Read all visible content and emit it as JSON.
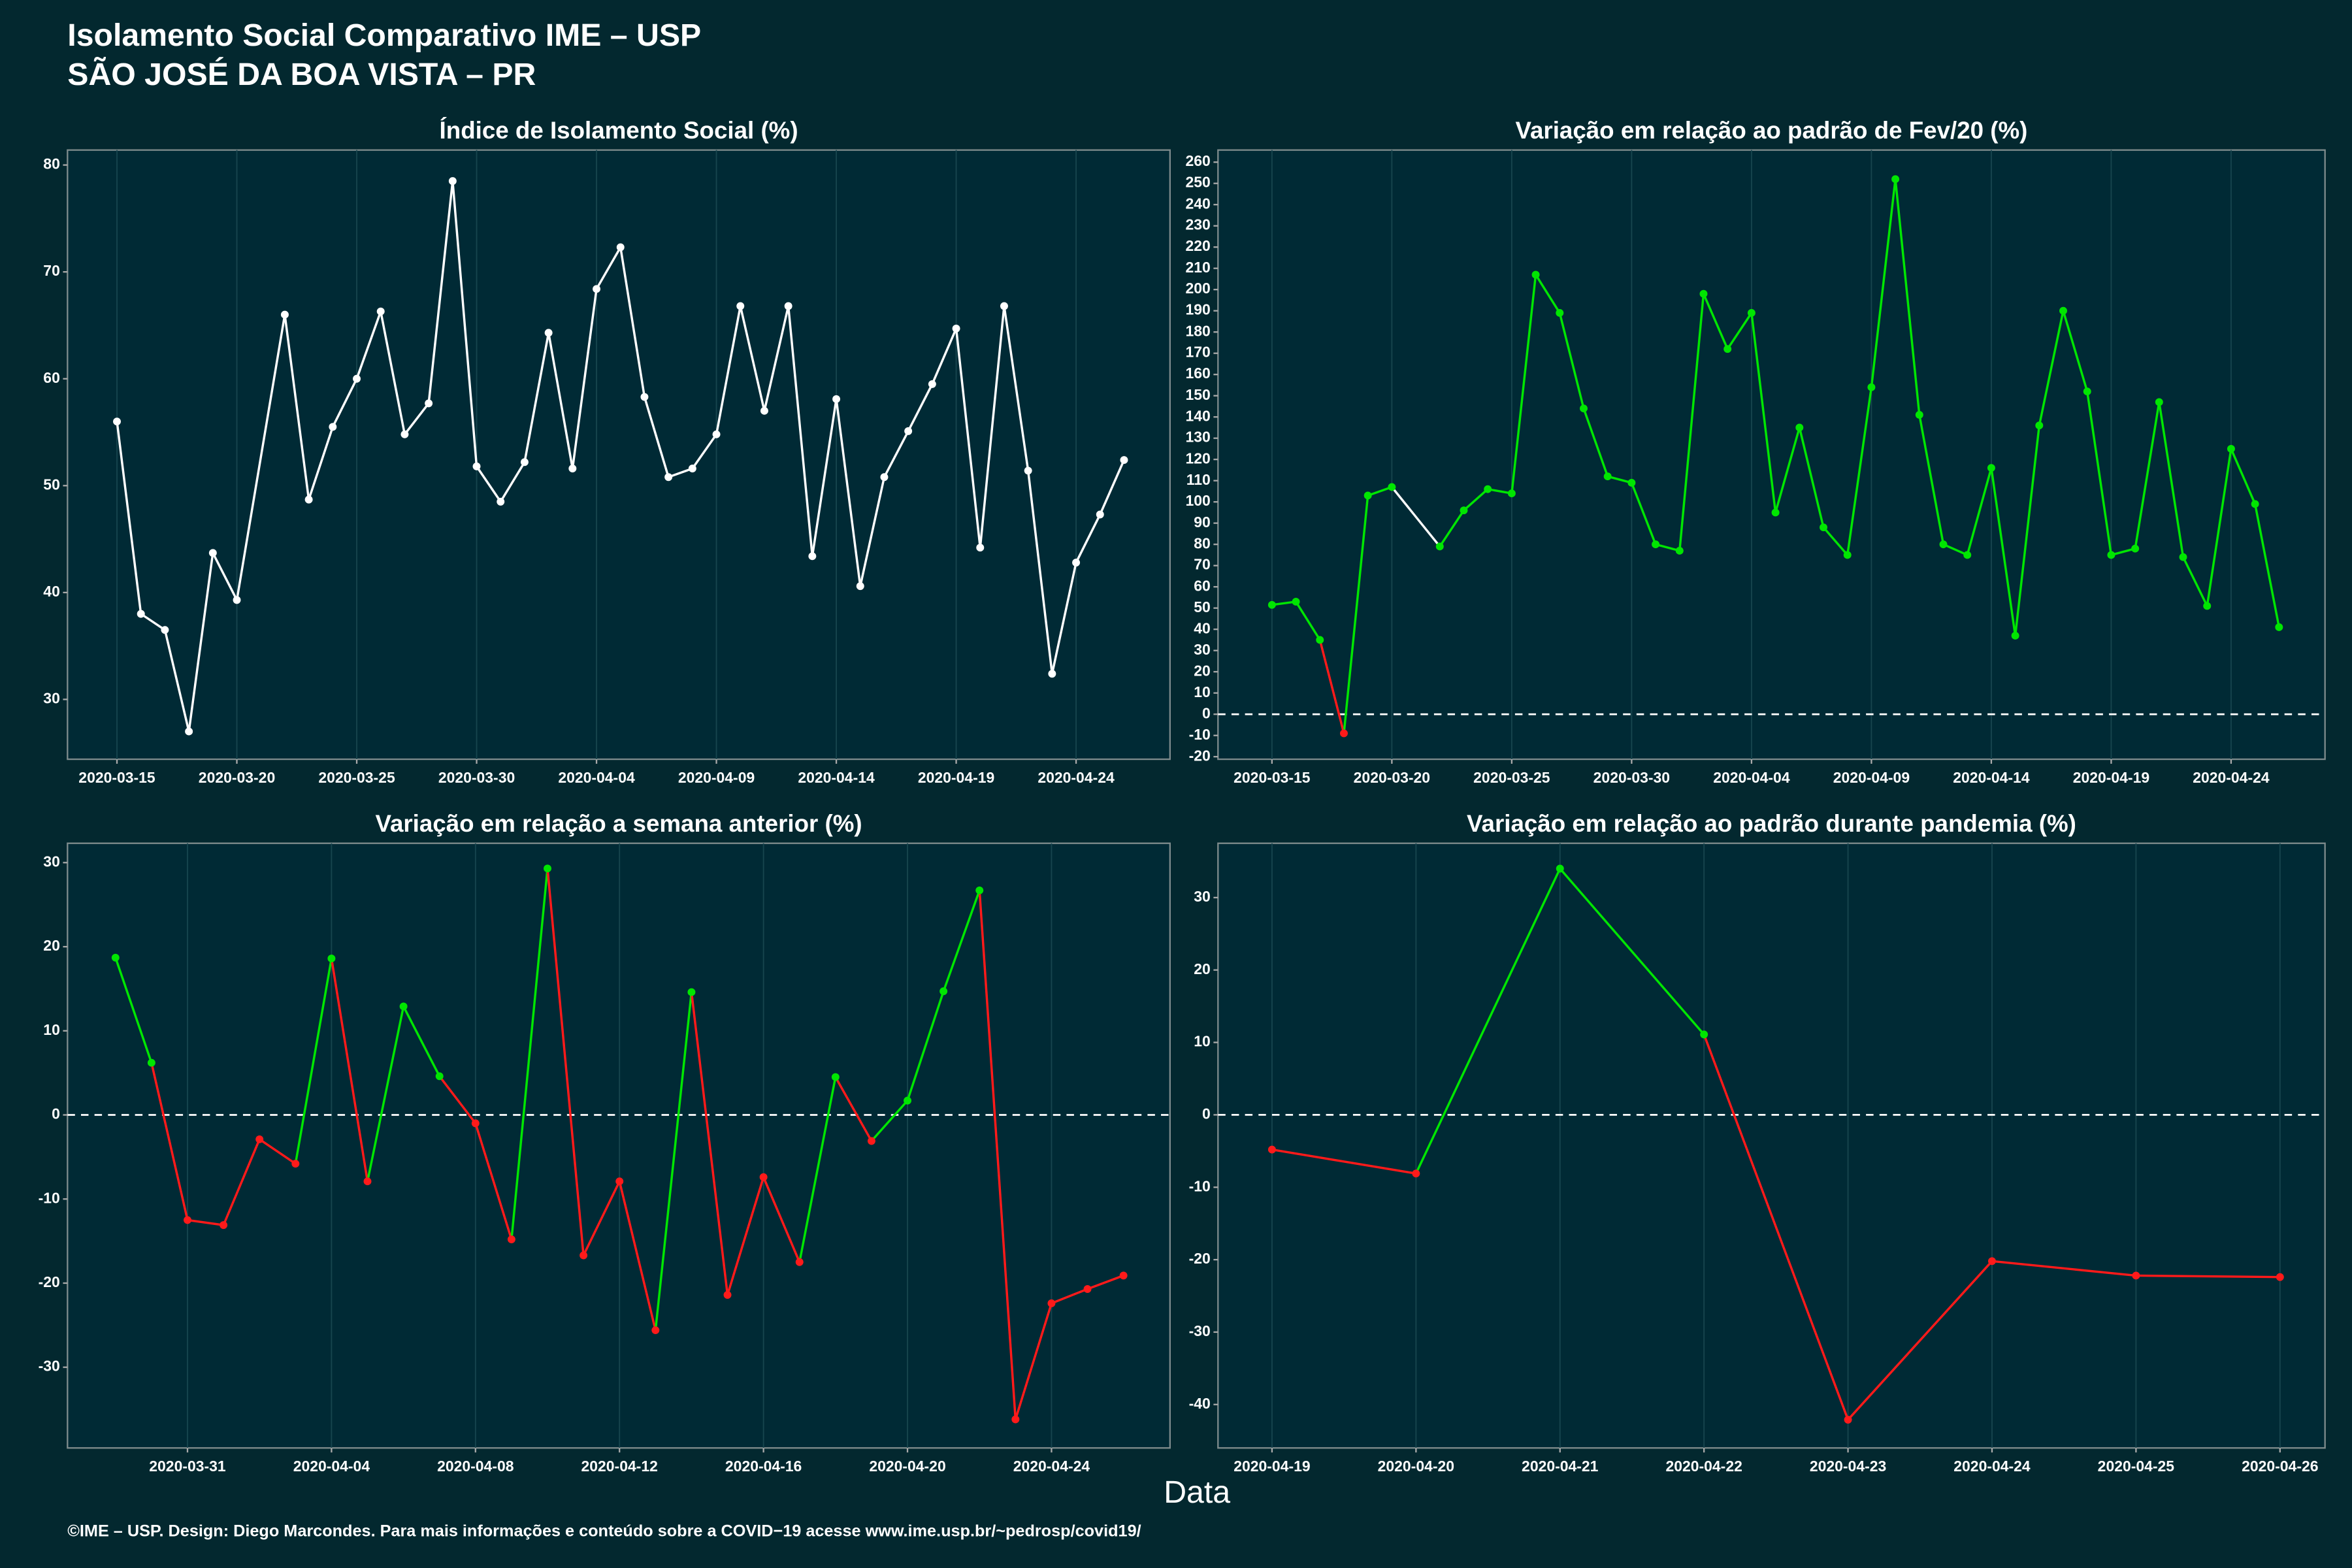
{
  "title": "Isolamento Social Comparativo IME – USP",
  "subtitle": "SÃO JOSÉ DA BOA VISTA – PR",
  "x_label": "Data",
  "footer": "©IME – USP. Design: Diego Marcondes. Para mais informações e conteúdo sobre a COVID−19 acesse www.ime.usp.br/~pedrosp/covid19/",
  "chart_data": [
    {
      "type": "line",
      "title": "Índice de Isolamento Social (%)",
      "x": [
        "2020-03-15",
        "2020-03-16",
        "2020-03-17",
        "2020-03-18",
        "2020-03-19",
        "2020-03-20",
        "2020-03-22",
        "2020-03-23",
        "2020-03-24",
        "2020-03-25",
        "2020-03-26",
        "2020-03-27",
        "2020-03-28",
        "2020-03-29",
        "2020-03-30",
        "2020-03-31",
        "2020-04-01",
        "2020-04-02",
        "2020-04-03",
        "2020-04-04",
        "2020-04-05",
        "2020-04-06",
        "2020-04-07",
        "2020-04-08",
        "2020-04-09",
        "2020-04-10",
        "2020-04-11",
        "2020-04-12",
        "2020-04-13",
        "2020-04-14",
        "2020-04-15",
        "2020-04-16",
        "2020-04-17",
        "2020-04-18",
        "2020-04-19",
        "2020-04-20",
        "2020-04-21",
        "2020-04-22",
        "2020-04-23",
        "2020-04-24",
        "2020-04-25",
        "2020-04-26"
      ],
      "series": [
        {
          "values": [
            56,
            38,
            36.5,
            27,
            43.7,
            39.3,
            66,
            48.7,
            55.5,
            60,
            66.3,
            54.8,
            57.7,
            78.5,
            51.8,
            48.5,
            52.2,
            64.3,
            51.6,
            68.4,
            72.3,
            58.3,
            50.8,
            51.6,
            54.8,
            66.8,
            57,
            66.8,
            43.4,
            58.1,
            40.6,
            50.8,
            55.1,
            59.5,
            64.7,
            44.2,
            66.8,
            51.4,
            32.4,
            42.8,
            47.3,
            52.4
          ]
        }
      ],
      "colors": {
        "line": "#ffffff"
      },
      "xlim": [
        "2020-03-12T22:30",
        "2020-04-27T22:00"
      ],
      "xticks": [
        "2020-03-15",
        "2020-03-20",
        "2020-03-25",
        "2020-03-30",
        "2020-04-04",
        "2020-04-09",
        "2020-04-14",
        "2020-04-19",
        "2020-04-24"
      ],
      "ylim": [
        24.4,
        81.4
      ],
      "yticks": [
        30,
        40,
        50,
        60,
        70,
        80
      ],
      "grid": true
    },
    {
      "type": "line",
      "title": "Variação em relação ao padrão de Fev/20 (%)",
      "x": [
        "2020-03-15",
        "2020-03-16",
        "2020-03-17",
        "2020-03-18",
        "2020-03-19",
        "2020-03-20",
        "2020-03-22",
        "2020-03-23",
        "2020-03-24",
        "2020-03-25",
        "2020-03-26",
        "2020-03-27",
        "2020-03-28",
        "2020-03-29",
        "2020-03-30",
        "2020-03-31",
        "2020-04-01",
        "2020-04-02",
        "2020-04-03",
        "2020-04-04",
        "2020-04-05",
        "2020-04-06",
        "2020-04-07",
        "2020-04-08",
        "2020-04-09",
        "2020-04-10",
        "2020-04-11",
        "2020-04-12",
        "2020-04-13",
        "2020-04-14",
        "2020-04-15",
        "2020-04-16",
        "2020-04-17",
        "2020-04-18",
        "2020-04-19",
        "2020-04-20",
        "2020-04-21",
        "2020-04-22",
        "2020-04-23",
        "2020-04-24",
        "2020-04-25",
        "2020-04-26"
      ],
      "series": [
        {
          "values": [
            51.5,
            53,
            35,
            -9,
            103,
            107,
            79,
            96,
            106,
            104,
            207,
            189,
            144,
            112,
            109,
            80,
            77,
            198,
            172,
            189,
            95,
            135,
            88,
            75,
            154,
            252,
            141,
            80,
            75,
            116,
            37,
            136,
            190,
            152,
            75,
            78,
            147,
            74,
            51,
            125,
            99,
            41
          ]
        }
      ],
      "colors": {
        "positive": "#00e600",
        "negative": "#ff1a1a",
        "gap": "#ffffff"
      },
      "reference_line": 0,
      "xlim": [
        "2020-03-12T18:00",
        "2020-04-27T22:00"
      ],
      "xticks": [
        "2020-03-15",
        "2020-03-20",
        "2020-03-25",
        "2020-03-30",
        "2020-04-04",
        "2020-04-09",
        "2020-04-14",
        "2020-04-19",
        "2020-04-24"
      ],
      "ylim": [
        -21.2,
        265.7
      ],
      "yticks": [
        -20,
        -10,
        0,
        10,
        20,
        30,
        40,
        50,
        60,
        70,
        80,
        90,
        100,
        110,
        120,
        130,
        140,
        150,
        160,
        170,
        180,
        190,
        200,
        210,
        220,
        230,
        240,
        250,
        260
      ],
      "grid": true
    },
    {
      "type": "line",
      "title": "Variação em relação a semana anterior (%)",
      "x": [
        "2020-03-29",
        "2020-03-30",
        "2020-03-31",
        "2020-04-01",
        "2020-04-02",
        "2020-04-03",
        "2020-04-04",
        "2020-04-05",
        "2020-04-06",
        "2020-04-07",
        "2020-04-08",
        "2020-04-09",
        "2020-04-10",
        "2020-04-11",
        "2020-04-12",
        "2020-04-13",
        "2020-04-14",
        "2020-04-15",
        "2020-04-16",
        "2020-04-17",
        "2020-04-18",
        "2020-04-19",
        "2020-04-20",
        "2020-04-21",
        "2020-04-22",
        "2020-04-23",
        "2020-04-24",
        "2020-04-25",
        "2020-04-26"
      ],
      "series": [
        {
          "values": [
            18.7,
            6.2,
            -12.5,
            -13.1,
            -2.9,
            -5.8,
            18.6,
            -7.9,
            12.9,
            4.6,
            -1,
            -14.8,
            29.3,
            -16.7,
            -7.9,
            -25.6,
            14.6,
            -21.4,
            -7.4,
            -17.5,
            4.5,
            -3.1,
            1.7,
            14.7,
            26.7,
            -36.2,
            -22.4,
            -20.7,
            -19.1
          ]
        }
      ],
      "colors": {
        "positive": "#00e600",
        "negative": "#ff1a1a",
        "gap": "#ffffff"
      },
      "reference_line": 0,
      "xlim": [
        "2020-03-27T16:00",
        "2020-04-27T07:00"
      ],
      "xticks": [
        "2020-03-31",
        "2020-04-04",
        "2020-04-08",
        "2020-04-12",
        "2020-04-16",
        "2020-04-20",
        "2020-04-24"
      ],
      "ylim": [
        -39.6,
        32.3
      ],
      "yticks": [
        -30,
        -20,
        -10,
        0,
        10,
        20,
        30
      ],
      "grid": true
    },
    {
      "type": "line",
      "title": "Variação em relação ao padrão durante pandemia (%)",
      "x": [
        "2020-04-19",
        "2020-04-20",
        "2020-04-21",
        "2020-04-22",
        "2020-04-23",
        "2020-04-24",
        "2020-04-25",
        "2020-04-26"
      ],
      "series": [
        {
          "values": [
            -4.8,
            -8.1,
            34,
            11.1,
            -42.1,
            -20.2,
            -22.2,
            -22.4
          ]
        }
      ],
      "colors": {
        "positive": "#00e600",
        "negative": "#ff1a1a",
        "gap": "#ffffff"
      },
      "reference_line": 0,
      "xlim": [
        "2020-04-18T15:00",
        "2020-04-26T07:30"
      ],
      "xticks": [
        "2020-04-19",
        "2020-04-20",
        "2020-04-21",
        "2020-04-22",
        "2020-04-23",
        "2020-04-24",
        "2020-04-25",
        "2020-04-26"
      ],
      "ylim": [
        -46,
        37.5
      ],
      "yticks": [
        -40,
        -30,
        -20,
        -10,
        0,
        10,
        20,
        30
      ],
      "grid": true
    }
  ]
}
